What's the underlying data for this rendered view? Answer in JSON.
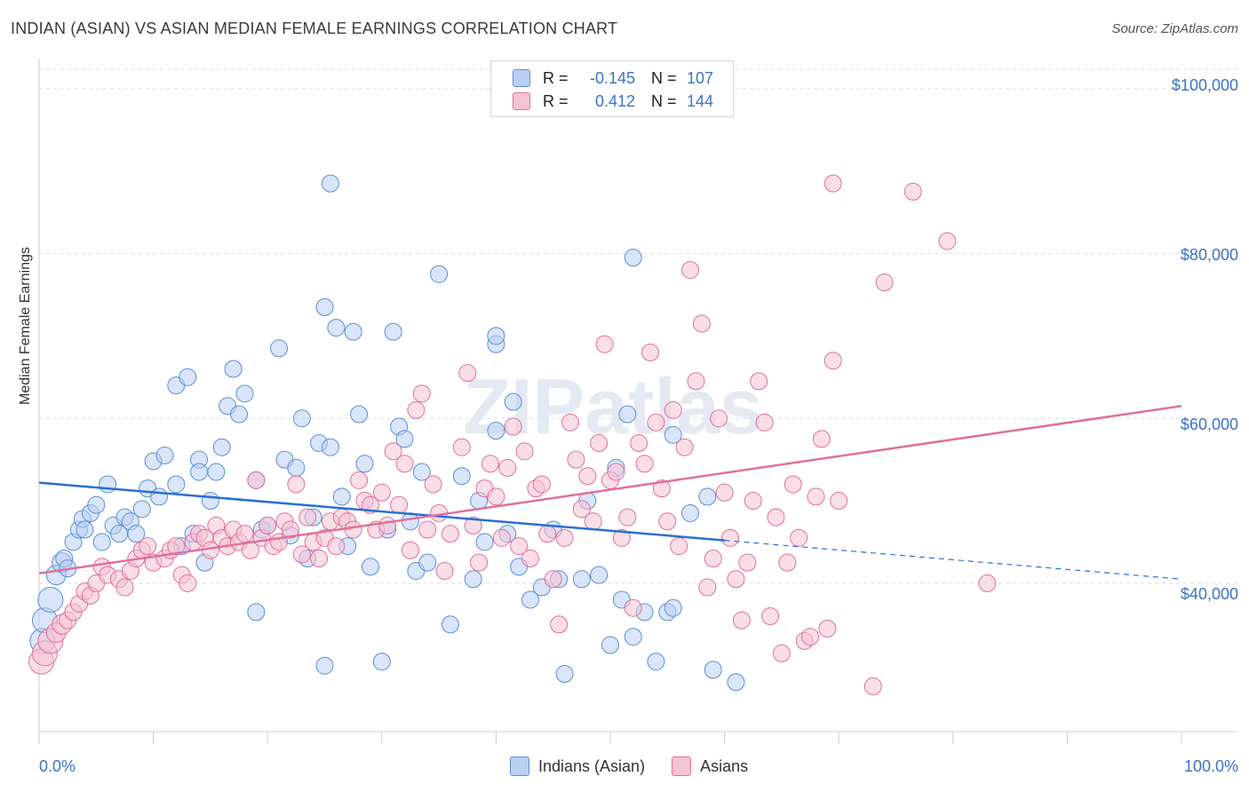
{
  "title": "INDIAN (ASIAN) VS ASIAN MEDIAN FEMALE EARNINGS CORRELATION CHART",
  "source": "Source: ZipAtlas.com",
  "watermark": "ZIPatlas",
  "legend_top": [
    {
      "r_label": "R =",
      "r_value": "-0.145",
      "n_label": "N =",
      "n_value": "107"
    },
    {
      "r_label": "R =",
      "r_value": "0.412",
      "n_label": "N =",
      "n_value": "144"
    }
  ],
  "legend_bottom": [
    "Indians (Asian)",
    "Asians"
  ],
  "colors": {
    "blue": "#5b8fd6",
    "blue_fill": "#b9d0f2",
    "pink": "#e0709a",
    "pink_fill": "#f6c3d4",
    "tick": "#3b73c7"
  },
  "chart_data": {
    "type": "scatter",
    "xlabel": "",
    "ylabel": "Median Female Earnings",
    "xlim": [
      0,
      100
    ],
    "ylim": [
      22000,
      103000
    ],
    "x_tick_labels": [
      "0.0%",
      "100.0%"
    ],
    "y_tick_values": [
      40000,
      60000,
      80000,
      100000
    ],
    "y_tick_labels": [
      "$40,000",
      "$60,000",
      "$80,000",
      "$100,000"
    ],
    "series": [
      {
        "name": "Indians (Asian)",
        "r": -0.145,
        "n": 107,
        "trend": {
          "x": [
            0,
            60
          ],
          "y": [
            52200,
            45200
          ],
          "dashed_to": [
            100,
            40500
          ]
        },
        "points": [
          [
            0.3,
            33000
          ],
          [
            0.5,
            35500
          ],
          [
            1,
            38000
          ],
          [
            1.5,
            41000
          ],
          [
            2,
            42500
          ],
          [
            2.2,
            43000
          ],
          [
            2.5,
            41800
          ],
          [
            3,
            45000
          ],
          [
            3.5,
            46500
          ],
          [
            3.8,
            47800
          ],
          [
            4,
            46500
          ],
          [
            4.5,
            48500
          ],
          [
            5,
            49500
          ],
          [
            5.5,
            45000
          ],
          [
            6,
            52000
          ],
          [
            6.5,
            47000
          ],
          [
            7,
            46000
          ],
          [
            7.5,
            48000
          ],
          [
            8,
            47500
          ],
          [
            8.5,
            46000
          ],
          [
            9,
            49000
          ],
          [
            9.5,
            51500
          ],
          [
            10,
            54800
          ],
          [
            10.5,
            50500
          ],
          [
            11,
            55500
          ],
          [
            12,
            64000
          ],
          [
            12,
            52000
          ],
          [
            12.5,
            44500
          ],
          [
            13,
            65000
          ],
          [
            13.5,
            46000
          ],
          [
            14,
            55000
          ],
          [
            14,
            53500
          ],
          [
            14.5,
            42500
          ],
          [
            15,
            50000
          ],
          [
            15.5,
            53500
          ],
          [
            16,
            56500
          ],
          [
            16.5,
            61500
          ],
          [
            17,
            66000
          ],
          [
            17.5,
            60500
          ],
          [
            18,
            63000
          ],
          [
            19,
            52500
          ],
          [
            19,
            36500
          ],
          [
            19.5,
            46500
          ],
          [
            20,
            47000
          ],
          [
            21,
            68500
          ],
          [
            21.5,
            55000
          ],
          [
            22,
            45800
          ],
          [
            22.5,
            54000
          ],
          [
            23,
            60000
          ],
          [
            23.5,
            43000
          ],
          [
            24,
            48000
          ],
          [
            24.5,
            57000
          ],
          [
            25,
            73500
          ],
          [
            25.5,
            56500
          ],
          [
            26,
            71000
          ],
          [
            26.5,
            50500
          ],
          [
            27,
            44500
          ],
          [
            27.5,
            70500
          ],
          [
            28,
            60500
          ],
          [
            28.5,
            54500
          ],
          [
            29,
            42000
          ],
          [
            30,
            30500
          ],
          [
            25,
            30000
          ],
          [
            30.5,
            46500
          ],
          [
            31,
            70500
          ],
          [
            31.5,
            59000
          ],
          [
            32,
            57500
          ],
          [
            32.5,
            47500
          ],
          [
            33,
            41500
          ],
          [
            33.5,
            53500
          ],
          [
            34,
            42500
          ],
          [
            35,
            77500
          ],
          [
            36,
            35000
          ],
          [
            37,
            53000
          ],
          [
            38,
            40500
          ],
          [
            38.5,
            50000
          ],
          [
            39,
            45000
          ],
          [
            40,
            58500
          ],
          [
            40,
            69000
          ],
          [
            41,
            46000
          ],
          [
            42,
            42000
          ],
          [
            43,
            38000
          ],
          [
            44,
            39500
          ],
          [
            45,
            46500
          ],
          [
            45.5,
            40500
          ],
          [
            46,
            29000
          ],
          [
            47.5,
            40500
          ],
          [
            48,
            50000
          ],
          [
            49,
            41000
          ],
          [
            50,
            32500
          ],
          [
            50.5,
            54000
          ],
          [
            51,
            38000
          ],
          [
            51.5,
            60500
          ],
          [
            52,
            33500
          ],
          [
            53,
            36500
          ],
          [
            54,
            30500
          ],
          [
            55,
            36500
          ],
          [
            55.5,
            37000
          ],
          [
            57,
            48500
          ],
          [
            58.5,
            50500
          ],
          [
            59,
            29500
          ],
          [
            61,
            28000
          ],
          [
            25.5,
            88500
          ],
          [
            40,
            70000
          ],
          [
            41.5,
            62000
          ],
          [
            55.5,
            58000
          ],
          [
            52,
            79500
          ]
        ]
      },
      {
        "name": "Asians",
        "r": 0.412,
        "n": 144,
        "trend": {
          "x": [
            0,
            100
          ],
          "y": [
            41200,
            61500
          ]
        },
        "points": [
          [
            0.2,
            30500
          ],
          [
            0.5,
            31500
          ],
          [
            1,
            33000
          ],
          [
            1.5,
            34000
          ],
          [
            2,
            35000
          ],
          [
            2.5,
            35500
          ],
          [
            3,
            36500
          ],
          [
            3.5,
            37500
          ],
          [
            4,
            39000
          ],
          [
            4.5,
            38500
          ],
          [
            5,
            40000
          ],
          [
            5.5,
            42000
          ],
          [
            6,
            41000
          ],
          [
            7,
            40500
          ],
          [
            7.5,
            39500
          ],
          [
            8,
            41500
          ],
          [
            8.5,
            43000
          ],
          [
            9,
            44000
          ],
          [
            9.5,
            44500
          ],
          [
            10,
            42500
          ],
          [
            11,
            43000
          ],
          [
            11.5,
            44000
          ],
          [
            12,
            44500
          ],
          [
            12.5,
            41000
          ],
          [
            13,
            40000
          ],
          [
            13.5,
            45000
          ],
          [
            14,
            46000
          ],
          [
            14.5,
            45500
          ],
          [
            15,
            44000
          ],
          [
            15.5,
            47000
          ],
          [
            16,
            45500
          ],
          [
            16.5,
            44500
          ],
          [
            17,
            46500
          ],
          [
            17.5,
            45000
          ],
          [
            18,
            46000
          ],
          [
            18.5,
            44000
          ],
          [
            19,
            52500
          ],
          [
            19.5,
            45500
          ],
          [
            20,
            47000
          ],
          [
            20.5,
            44500
          ],
          [
            21,
            45000
          ],
          [
            21.5,
            47500
          ],
          [
            22,
            46500
          ],
          [
            22.5,
            52000
          ],
          [
            23,
            43500
          ],
          [
            23.5,
            48000
          ],
          [
            24,
            45000
          ],
          [
            24.5,
            43000
          ],
          [
            25,
            45500
          ],
          [
            25.5,
            47500
          ],
          [
            26,
            44500
          ],
          [
            26.5,
            48000
          ],
          [
            27,
            47500
          ],
          [
            27.5,
            46500
          ],
          [
            28,
            52500
          ],
          [
            28.5,
            50000
          ],
          [
            29,
            49500
          ],
          [
            29.5,
            46500
          ],
          [
            30,
            51000
          ],
          [
            30.5,
            47000
          ],
          [
            31,
            56000
          ],
          [
            31.5,
            49500
          ],
          [
            32,
            54500
          ],
          [
            32.5,
            44000
          ],
          [
            33,
            61000
          ],
          [
            33.5,
            63000
          ],
          [
            34,
            46500
          ],
          [
            34.5,
            52000
          ],
          [
            35,
            48500
          ],
          [
            35.5,
            41500
          ],
          [
            36,
            46000
          ],
          [
            37,
            56500
          ],
          [
            37.5,
            65500
          ],
          [
            38,
            47000
          ],
          [
            38.5,
            42500
          ],
          [
            39,
            51500
          ],
          [
            39.5,
            54500
          ],
          [
            40,
            50500
          ],
          [
            40.5,
            45500
          ],
          [
            41,
            54000
          ],
          [
            41.5,
            59000
          ],
          [
            42,
            44500
          ],
          [
            42.5,
            56000
          ],
          [
            43,
            43000
          ],
          [
            43.5,
            51500
          ],
          [
            44,
            52000
          ],
          [
            44.5,
            46000
          ],
          [
            45,
            40500
          ],
          [
            45.5,
            35000
          ],
          [
            46,
            45500
          ],
          [
            46.5,
            59500
          ],
          [
            47,
            55000
          ],
          [
            47.5,
            49000
          ],
          [
            48,
            53000
          ],
          [
            48.5,
            47500
          ],
          [
            49,
            57000
          ],
          [
            49.5,
            69000
          ],
          [
            50,
            52500
          ],
          [
            50.5,
            53500
          ],
          [
            51,
            45500
          ],
          [
            51.5,
            48000
          ],
          [
            52,
            37000
          ],
          [
            52.5,
            57000
          ],
          [
            53,
            54500
          ],
          [
            53.5,
            68000
          ],
          [
            54,
            59500
          ],
          [
            54.5,
            51500
          ],
          [
            55,
            47500
          ],
          [
            55.5,
            61000
          ],
          [
            56,
            44500
          ],
          [
            56.5,
            56500
          ],
          [
            57,
            78000
          ],
          [
            57.5,
            64500
          ],
          [
            58,
            71500
          ],
          [
            58.5,
            39500
          ],
          [
            59,
            43000
          ],
          [
            59.5,
            60000
          ],
          [
            60,
            51000
          ],
          [
            60.5,
            45500
          ],
          [
            61,
            40500
          ],
          [
            61.5,
            35500
          ],
          [
            62,
            42500
          ],
          [
            62.5,
            50000
          ],
          [
            63,
            64500
          ],
          [
            63.5,
            59500
          ],
          [
            64,
            36000
          ],
          [
            64.5,
            48000
          ],
          [
            65,
            31500
          ],
          [
            65.5,
            42500
          ],
          [
            66,
            52000
          ],
          [
            66.5,
            45500
          ],
          [
            67,
            33000
          ],
          [
            67.5,
            33500
          ],
          [
            68,
            50500
          ],
          [
            68.5,
            57500
          ],
          [
            69,
            34500
          ],
          [
            69.5,
            67000
          ],
          [
            70,
            50000
          ],
          [
            73,
            27500
          ],
          [
            74,
            76500
          ],
          [
            69.5,
            88500
          ],
          [
            76.5,
            87500
          ],
          [
            79.5,
            81500
          ],
          [
            83,
            40000
          ]
        ]
      }
    ]
  }
}
